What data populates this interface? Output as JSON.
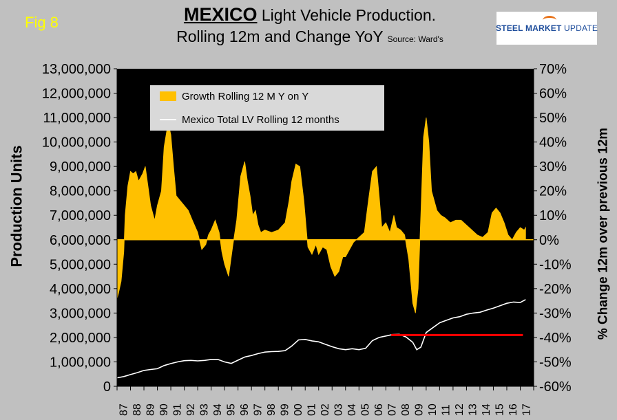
{
  "fig_label": "Fig 8",
  "title": {
    "main": "MEXICO",
    "line1_rest": " Light Vehicle Production.",
    "line2": "Rolling 12m and Change YoY",
    "source": "Source: Ward's"
  },
  "logo": {
    "part1": "STEEL MARKET",
    "part2": "UPDATE",
    "color": "#1f4e9c",
    "accent": "#e8731a"
  },
  "chart_data": {
    "type": "area",
    "ylabel": "Production Units",
    "y2label": "% Change 12m over previous 12m",
    "ylim": [
      0,
      13000000
    ],
    "y2lim": [
      -60,
      70
    ],
    "y_ticks": [
      "0",
      "1,000,000",
      "2,000,000",
      "3,000,000",
      "4,000,000",
      "5,000,000",
      "6,000,000",
      "7,000,000",
      "8,000,000",
      "9,000,000",
      "10,000,000",
      "11,000,000",
      "12,000,000",
      "13,000,000"
    ],
    "y2_ticks": [
      "-60%",
      "-50%",
      "-40%",
      "-30%",
      "-20%",
      "-10%",
      "0%",
      "10%",
      "20%",
      "30%",
      "40%",
      "50%",
      "60%",
      "70%"
    ],
    "x_range": [
      1987,
      2018
    ],
    "x_tick_labels": [
      "87",
      "88",
      "89",
      "90",
      "91",
      "92",
      "93",
      "94",
      "95",
      "96",
      "97",
      "98",
      "99",
      "00",
      "01",
      "02",
      "03",
      "04",
      "05",
      "06",
      "07",
      "08",
      "09",
      "10",
      "11",
      "12",
      "13",
      "14",
      "15",
      "16",
      "17"
    ],
    "legend_position": "top-left",
    "grid": false,
    "colors": {
      "plot_background": "#000000",
      "page_background": "#c0c0c0",
      "growth": "#ffc000",
      "total": "#ffffff",
      "reference": "#ff0000"
    },
    "series": [
      {
        "name": "Growth Rolling 12 M Y on Y",
        "axis": "right",
        "type": "area",
        "x": [
          1987.0,
          1987.1,
          1987.3,
          1987.5,
          1987.6,
          1987.8,
          1988.0,
          1988.2,
          1988.4,
          1988.6,
          1988.9,
          1989.1,
          1989.3,
          1989.5,
          1989.8,
          1990.0,
          1990.3,
          1990.5,
          1990.8,
          1991.0,
          1991.2,
          1991.4,
          1991.7,
          1992.0,
          1992.3,
          1992.6,
          1993.0,
          1993.3,
          1993.6,
          1993.8,
          1994.0,
          1994.3,
          1994.6,
          1994.8,
          1995.0,
          1995.3,
          1995.6,
          1995.9,
          1996.2,
          1996.5,
          1996.7,
          1996.9,
          1997.1,
          1997.3,
          1997.5,
          1997.7,
          1998.0,
          1998.5,
          1999.0,
          1999.5,
          1999.8,
          2000.0,
          2000.3,
          2000.6,
          2000.9,
          2001.2,
          2001.5,
          2001.8,
          2002.0,
          2002.3,
          2002.6,
          2002.9,
          2003.2,
          2003.5,
          2003.8,
          2004.0,
          2004.3,
          2004.6,
          2005.0,
          2005.4,
          2005.7,
          2006.0,
          2006.3,
          2006.5,
          2006.7,
          2007.0,
          2007.3,
          2007.6,
          2007.8,
          2008.1,
          2008.4,
          2008.7,
          2009.0,
          2009.2,
          2009.4,
          2009.6,
          2009.8,
          2010.0,
          2010.2,
          2010.4,
          2010.6,
          2010.8,
          2011.1,
          2011.4,
          2011.8,
          2012.2,
          2012.6,
          2013.0,
          2013.4,
          2013.8,
          2014.2,
          2014.6,
          2014.9,
          2015.2,
          2015.5,
          2015.8,
          2016.1,
          2016.4,
          2016.7,
          2017.0,
          2017.3,
          2017.4
        ],
        "values": [
          -24,
          -22,
          -17,
          -5,
          10,
          22,
          28,
          27,
          28,
          24,
          27,
          30,
          22,
          14,
          8,
          14,
          20,
          38,
          48,
          43,
          30,
          18,
          16,
          14,
          12,
          8,
          3,
          -4,
          -2,
          2,
          4,
          8,
          3,
          -5,
          -10,
          -15,
          -3,
          8,
          26,
          32,
          24,
          18,
          10,
          12,
          6,
          3,
          4,
          3,
          4,
          7,
          16,
          24,
          31,
          30,
          16,
          -3,
          -6,
          -2,
          -6,
          -3,
          -4,
          -11,
          -15,
          -13,
          -7,
          -7,
          -4,
          -1,
          1,
          3,
          16,
          28,
          30,
          18,
          5,
          7,
          3,
          10,
          5,
          4,
          2,
          -8,
          -26,
          -30,
          -20,
          10,
          42,
          50,
          40,
          20,
          16,
          12,
          10,
          9,
          7,
          8,
          8,
          6,
          4,
          2,
          1,
          3,
          11,
          13,
          11,
          7,
          2,
          0,
          3,
          5,
          4,
          5
        ]
      },
      {
        "name": "Mexico Total LV Rolling 12 months",
        "axis": "left",
        "type": "line",
        "x": [
          1987.0,
          1987.5,
          1988.0,
          1988.5,
          1989.0,
          1989.5,
          1990.0,
          1990.5,
          1991.0,
          1991.5,
          1992.0,
          1992.5,
          1993.0,
          1993.5,
          1994.0,
          1994.5,
          1995.0,
          1995.5,
          1996.0,
          1996.5,
          1997.0,
          1997.5,
          1998.0,
          1998.5,
          1999.0,
          1999.5,
          2000.0,
          2000.5,
          2001.0,
          2001.5,
          2002.0,
          2002.5,
          2003.0,
          2003.5,
          2004.0,
          2004.5,
          2005.0,
          2005.5,
          2006.0,
          2006.5,
          2007.0,
          2007.5,
          2008.0,
          2008.5,
          2009.0,
          2009.3,
          2009.6,
          2010.0,
          2010.5,
          2011.0,
          2011.5,
          2012.0,
          2012.5,
          2013.0,
          2013.5,
          2014.0,
          2014.5,
          2015.0,
          2015.5,
          2016.0,
          2016.5,
          2017.0,
          2017.4
        ],
        "values": [
          350000,
          400000,
          480000,
          560000,
          650000,
          690000,
          720000,
          850000,
          930000,
          1000000,
          1050000,
          1060000,
          1040000,
          1060000,
          1100000,
          1100000,
          1000000,
          940000,
          1070000,
          1200000,
          1260000,
          1340000,
          1400000,
          1420000,
          1430000,
          1460000,
          1650000,
          1900000,
          1920000,
          1860000,
          1820000,
          1720000,
          1620000,
          1540000,
          1500000,
          1540000,
          1500000,
          1560000,
          1870000,
          2000000,
          2060000,
          2120000,
          2130000,
          2020000,
          1800000,
          1500000,
          1600000,
          2200000,
          2400000,
          2600000,
          2700000,
          2800000,
          2850000,
          2950000,
          3000000,
          3030000,
          3120000,
          3200000,
          3300000,
          3400000,
          3450000,
          3430000,
          3550000
        ]
      },
      {
        "name": "",
        "axis": "left",
        "type": "reference-line",
        "x": [
          2007.4,
          2017.2
        ],
        "values": [
          2100000,
          2100000
        ]
      }
    ]
  }
}
